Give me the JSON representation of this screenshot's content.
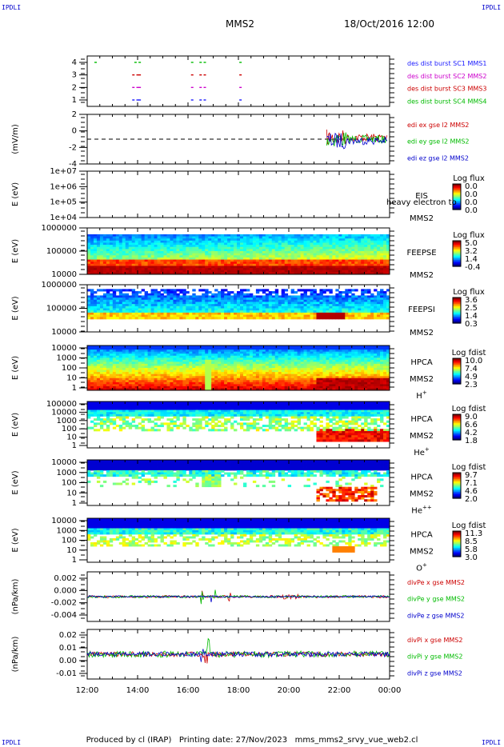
{
  "header": {
    "corner_label": "IPDLI",
    "title": "MMS2",
    "date": "18/Oct/2016 12:00"
  },
  "footer": {
    "produced_by": "Produced by cl (IRAP)",
    "printing_date": "Printing date: 27/Nov/2023",
    "script_name": "mms_mms2_srvy_vue_web2.cl"
  },
  "chart_data": [
    {
      "id": "burst",
      "type": "scatter",
      "ylabel": "",
      "ylim": [
        0.5,
        4.5
      ],
      "yticks": [
        "1",
        "2",
        "3",
        "4"
      ],
      "series": [
        {
          "name": "des dist burst SC1 MMS1",
          "color": "#1a1aff",
          "y": 1,
          "x": [
            "13:50",
            "14:00",
            "14:05",
            "16:10",
            "16:30",
            "16:40",
            "18:05"
          ]
        },
        {
          "name": "des dist burst SC2 MMS2",
          "color": "#cc00cc",
          "y": 2,
          "x": [
            "13:50",
            "14:00",
            "14:05",
            "16:10",
            "16:30",
            "16:40",
            "18:05"
          ]
        },
        {
          "name": "des dist burst SC3 MMS3",
          "color": "#cc0000",
          "y": 3,
          "x": [
            "13:50",
            "14:00",
            "14:05",
            "16:10",
            "16:30",
            "16:40",
            "18:05"
          ]
        },
        {
          "name": "des dist burst SC4 MMS4",
          "color": "#00bb00",
          "y": 4,
          "x": [
            "12:20",
            "13:55",
            "14:05",
            "16:10",
            "16:30",
            "16:40",
            "18:05"
          ]
        }
      ]
    },
    {
      "id": "edi",
      "type": "line",
      "ylabel": "(mV/m)",
      "ylim": [
        -4,
        4
      ],
      "yticks": [
        "-4",
        "-2",
        "0",
        "2"
      ],
      "reference_line": 0,
      "active_range": [
        "21:30",
        "23:55"
      ],
      "series": [
        {
          "name": "edi ex gse l2 MMS2",
          "color": "#cc0000"
        },
        {
          "name": "edi ey gse l2 MMS2",
          "color": "#00bb00"
        },
        {
          "name": "edi ez gse l2 MMS2",
          "color": "#0000cc"
        }
      ]
    },
    {
      "id": "eis",
      "type": "heatmap",
      "ylabel": "E (eV)",
      "yticks": [
        "1e+04",
        "1e+05",
        "1e+06",
        "1e+07"
      ],
      "labels": [
        "EIS",
        "MMS2"
      ],
      "overlay_text": "heavy electron to",
      "colorbar": {
        "title": "Log flux",
        "ticks": [
          "0.0",
          "0.0",
          "0.0",
          "0.0"
        ]
      }
    },
    {
      "id": "feepse",
      "type": "heatmap",
      "ylabel": "E (eV)",
      "yticks": [
        "10000",
        "100000",
        "1000000"
      ],
      "labels": [
        "FEEPSE",
        "MMS2"
      ],
      "colorbar": {
        "title": "Log flux",
        "ticks": [
          "5.0",
          "3.2",
          "1.4",
          "-0.4"
        ]
      }
    },
    {
      "id": "feepsi",
      "type": "heatmap",
      "ylabel": "E (eV)",
      "yticks": [
        "10000",
        "100000",
        "1000000"
      ],
      "labels": [
        "FEEPSI",
        "MMS2"
      ],
      "colorbar": {
        "title": "Log flux",
        "ticks": [
          "3.6",
          "2.5",
          "1.4",
          "0.3"
        ]
      }
    },
    {
      "id": "hpca_h",
      "type": "heatmap",
      "ylabel": "E (eV)",
      "yticks": [
        "1",
        "10",
        "100",
        "1000",
        "10000"
      ],
      "labels": [
        "HPCA",
        "MMS2"
      ],
      "species": "H",
      "species_sup": "+",
      "colorbar": {
        "title": "Log fdist",
        "ticks": [
          "10.0",
          "7.4",
          "4.9",
          "2.3"
        ]
      }
    },
    {
      "id": "hpca_he1",
      "type": "heatmap",
      "ylabel": "E (eV)",
      "yticks": [
        "1",
        "10",
        "100",
        "1000",
        "10000",
        "100000"
      ],
      "labels": [
        "HPCA",
        "MMS2"
      ],
      "species": "He",
      "species_sup": "+",
      "colorbar": {
        "title": "Log fdist",
        "ticks": [
          "9.0",
          "6.6",
          "4.2",
          "1.8"
        ]
      }
    },
    {
      "id": "hpca_he2",
      "type": "heatmap",
      "ylabel": "E (eV)",
      "yticks": [
        "1",
        "10",
        "100",
        "1000",
        "10000"
      ],
      "labels": [
        "HPCA",
        "MMS2"
      ],
      "species": "He",
      "species_sup": "++",
      "colorbar": {
        "title": "Log fdist",
        "ticks": [
          "9.7",
          "7.1",
          "4.6",
          "2.0"
        ]
      }
    },
    {
      "id": "hpca_o",
      "type": "heatmap",
      "ylabel": "E (eV)",
      "yticks": [
        "1",
        "10",
        "100",
        "1000",
        "10000"
      ],
      "labels": [
        "HPCA",
        "MMS2"
      ],
      "species": "O",
      "species_sup": "+",
      "colorbar": {
        "title": "Log fdist",
        "ticks": [
          "11.3",
          "8.5",
          "5.8",
          "3.0"
        ]
      }
    },
    {
      "id": "divpe",
      "type": "line",
      "ylabel": "(nPa/km)",
      "ylim": [
        -0.006,
        0.003
      ],
      "yticks": [
        "-0.004",
        "-0.002",
        "0.000",
        "0.002"
      ],
      "series": [
        {
          "name": "divPe x gse MMS2",
          "color": "#cc0000"
        },
        {
          "name": "divPe y gse MMS2",
          "color": "#00bb00"
        },
        {
          "name": "divPe z gse MMS2",
          "color": "#0000cc"
        }
      ]
    },
    {
      "id": "divpi",
      "type": "line",
      "ylabel": "(nPa/km)",
      "ylim": [
        -0.017,
        0.024
      ],
      "yticks": [
        "-0.01",
        "0.00",
        "0.01",
        "0.02"
      ],
      "series": [
        {
          "name": "divPi x gse MMS2",
          "color": "#cc0000"
        },
        {
          "name": "divPi y gse MMS2",
          "color": "#00bb00"
        },
        {
          "name": "divPi z gse MMS2",
          "color": "#0000cc"
        }
      ]
    }
  ],
  "x_axis": {
    "ticks": [
      "12:00",
      "14:00",
      "16:00",
      "18:00",
      "20:00",
      "22:00",
      "00:00"
    ]
  }
}
